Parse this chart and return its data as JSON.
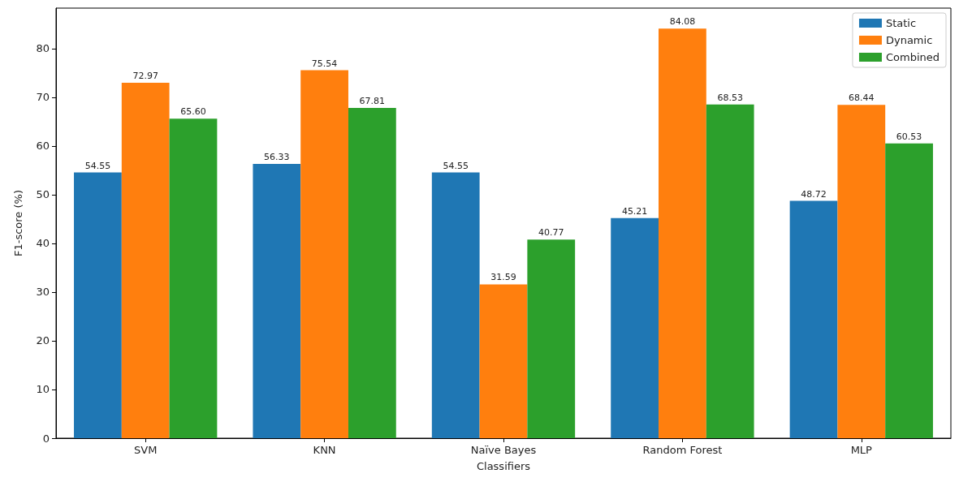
{
  "chart_data": {
    "type": "bar",
    "xlabel": "Classifiers",
    "ylabel": "F1-score (%)",
    "categories": [
      "SVM",
      "KNN",
      "Naïve Bayes",
      "Random Forest",
      "MLP"
    ],
    "series": [
      {
        "name": "Static",
        "color": "#1f77b4",
        "values": [
          54.55,
          56.33,
          54.55,
          45.21,
          48.72
        ],
        "value_labels": [
          "54.55",
          "56.33",
          "54.55",
          "45.21",
          "48.72"
        ]
      },
      {
        "name": "Dynamic",
        "color": "#ff7f0e",
        "values": [
          72.97,
          75.54,
          31.59,
          84.08,
          68.44
        ],
        "value_labels": [
          "72.97",
          "75.54",
          "31.59",
          "84.08",
          "68.44"
        ]
      },
      {
        "name": "Combined",
        "color": "#2ca02c",
        "values": [
          65.6,
          67.81,
          40.77,
          68.53,
          60.53
        ],
        "value_labels": [
          "65.60",
          "67.81",
          "40.77",
          "68.53",
          "60.53"
        ]
      }
    ],
    "ylim": [
      0,
      88.3
    ],
    "yticks": [
      0,
      10,
      20,
      30,
      40,
      50,
      60,
      70,
      80
    ],
    "grid": false,
    "legend": "top right"
  }
}
